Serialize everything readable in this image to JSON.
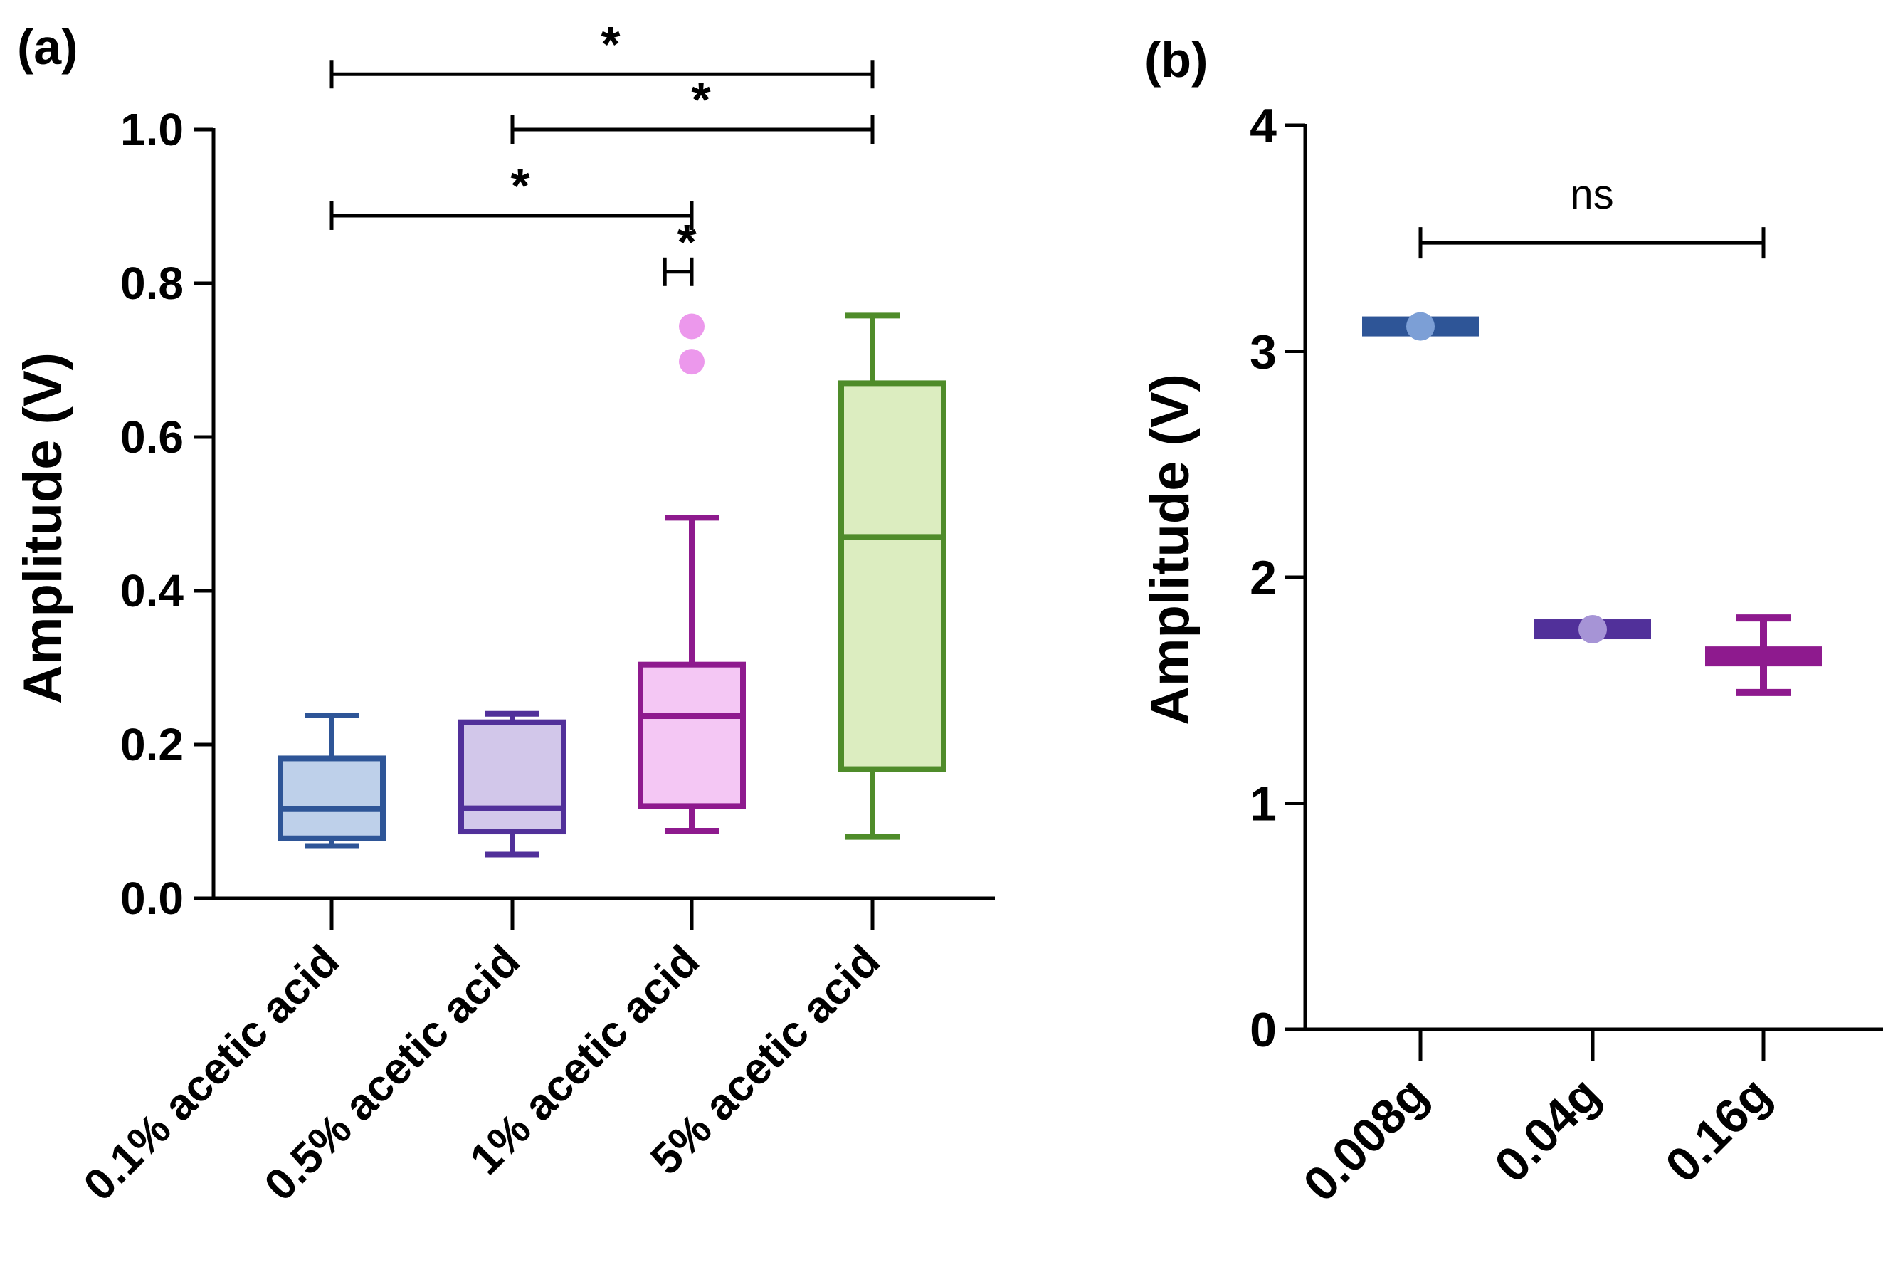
{
  "chart_data": [
    {
      "panel_label": "(a)",
      "type": "box",
      "ylabel": "Amplitude (V)",
      "ylim": [
        0,
        1.0
      ],
      "yticks": [
        "0.0",
        "0.2",
        "0.4",
        "0.6",
        "0.8",
        "1.0"
      ],
      "categories": [
        "0.1% acetic acid",
        "0.5% acetic acid",
        "1% acetic acid",
        "5% acetic acid"
      ],
      "boxes": [
        {
          "name": "0.1% acetic acid",
          "min": 0.068,
          "q1": 0.078,
          "median": 0.116,
          "q3": 0.182,
          "max": 0.238,
          "outliers": [],
          "stroke": "#2e5597",
          "fill": "#bed0ea"
        },
        {
          "name": "0.5% acetic acid",
          "min": 0.057,
          "q1": 0.087,
          "median": 0.117,
          "q3": 0.229,
          "max": 0.24,
          "outliers": [],
          "stroke": "#51309a",
          "fill": "#d2c7ea"
        },
        {
          "name": "1% acetic acid",
          "min": 0.088,
          "q1": 0.12,
          "median": 0.237,
          "q3": 0.304,
          "max": 0.495,
          "outliers": [
            0.744,
            0.698
          ],
          "stroke": "#8e1a8e",
          "fill": "#f4c7f4",
          "outlier_color": "#ec98ec"
        },
        {
          "name": "5% acetic acid",
          "min": 0.08,
          "q1": 0.168,
          "median": 0.47,
          "q3": 0.67,
          "max": 0.758,
          "outliers": [],
          "stroke": "#4f8c2a",
          "fill": "#dcedc0"
        }
      ],
      "significance": [
        {
          "from": 0,
          "to": 3,
          "y": 1.072,
          "label": "*"
        },
        {
          "from": 1,
          "to": 3,
          "y": 1.0,
          "label": "*"
        },
        {
          "from": 0,
          "to": 2,
          "y": 0.888,
          "label": "*"
        },
        {
          "from": 1.85,
          "to": 2,
          "y": 0.815,
          "label": "*"
        }
      ]
    },
    {
      "panel_label": "(b)",
      "type": "scatter",
      "ylabel": "Amplitude (V)",
      "ylim": [
        0,
        4
      ],
      "yticks": [
        "0",
        "1",
        "2",
        "3",
        "4"
      ],
      "categories": [
        "0.008g",
        "0.04g",
        "0.16g"
      ],
      "points": [
        {
          "name": "0.008g",
          "mean": 3.11,
          "low": 3.08,
          "high": 3.14,
          "bar_color": "#2e5597",
          "point_color": "#7c9fd6",
          "show_point": true
        },
        {
          "name": "0.04g",
          "mean": 1.77,
          "low": 1.74,
          "high": 1.81,
          "bar_color": "#51309a",
          "point_color": "#a694d6",
          "show_point": true
        },
        {
          "name": "0.16g",
          "mean": 1.65,
          "low": 1.49,
          "high": 1.82,
          "bar_color": "#8e1a8e",
          "point_color": "#8e1a8e",
          "show_point": false
        }
      ],
      "significance": [
        {
          "from": 0,
          "to": 2,
          "y": 3.48,
          "label": "ns"
        }
      ]
    }
  ]
}
